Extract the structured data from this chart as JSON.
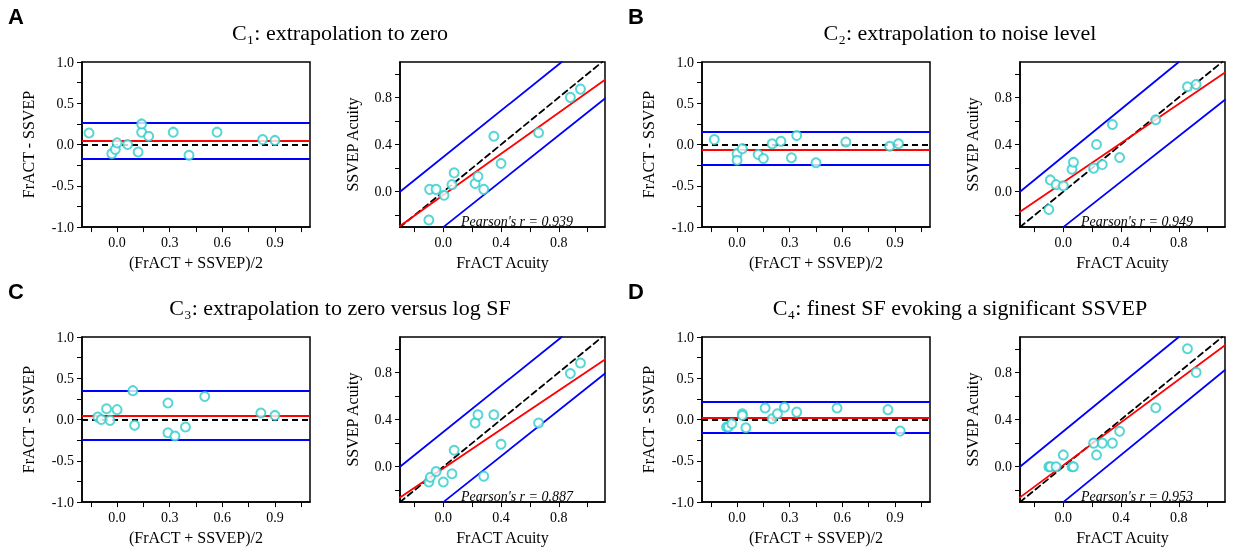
{
  "chart_data": [
    {
      "type": "scatter",
      "title": "C₁: extrapolation to zero",
      "annotations": [
        "A"
      ],
      "xlabel": "(FrACT + SSVEP)/2",
      "ylabel": "FrACT - SSVEP",
      "marker": "circle",
      "color": "#2ecccc",
      "x": [
        -0.16,
        -0.03,
        -0.01,
        0.0,
        0.06,
        0.12,
        0.14,
        0.14,
        0.18,
        0.32,
        0.41,
        0.57,
        0.83,
        0.9
      ],
      "values": [
        0.14,
        -0.11,
        -0.06,
        0.02,
        0.0,
        -0.09,
        0.15,
        0.25,
        0.1,
        0.15,
        -0.13,
        0.15,
        0.06,
        0.05
      ],
      "xlim": [
        -0.2,
        1.1
      ],
      "xticks": [
        {
          "value": -0.15,
          "label": null
        },
        {
          "value": 0,
          "label": "0.0"
        },
        {
          "value": 0.15,
          "label": null
        },
        0.3,
        {
          "value": 0.45,
          "label": null
        },
        0.6,
        {
          "value": 0.75,
          "label": null
        },
        0.9,
        {
          "value": 1.05,
          "label": null
        }
      ],
      "ylim": [
        -1,
        1
      ],
      "yticks": [
        {
          "value": -1,
          "label": "-1.0"
        },
        {
          "value": -0.75,
          "label": null
        },
        -0.5,
        {
          "value": -0.25,
          "label": null
        },
        {
          "value": 0,
          "label": "0.0"
        },
        {
          "value": 0.25,
          "label": null
        },
        0.5,
        {
          "value": 0.75,
          "label": null
        },
        {
          "value": 1,
          "label": "1.0"
        }
      ],
      "ref_lines": [
        {
          "axis": "y",
          "value": 0,
          "color": "#000000",
          "line_style": "dashed"
        },
        {
          "axis": "y",
          "value": 0.05,
          "color": "#ff0000"
        },
        {
          "axis": "y",
          "value": 0.27,
          "color": "#0000ff"
        },
        {
          "axis": "y",
          "value": -0.17,
          "color": "#0000ff"
        }
      ]
    },
    {
      "type": "scatter",
      "annotations": [
        "Pearson's r = 0.939"
      ],
      "xlabel": "FrACT Acuity",
      "ylabel": "SSVEP Acuity",
      "marker": "circle",
      "series": [
        {
          "color": "#2ecccc",
          "x": [
            -0.1,
            -0.095,
            -0.05,
            0.005,
            0.06,
            0.075,
            0.22,
            0.24,
            0.28,
            0.35,
            0.4,
            0.66,
            0.88,
            0.95
          ],
          "values": [
            -0.24,
            0.02,
            0.02,
            -0.03,
            0.06,
            0.16,
            0.07,
            0.13,
            0.02,
            0.47,
            0.24,
            0.5,
            0.8,
            0.87
          ]
        },
        {
          "type": "line",
          "marker": "none",
          "line_style": "dashed",
          "color": "#000000",
          "x": [
            -0.3,
            1.1
          ],
          "values": [
            -0.3,
            1.1
          ]
        },
        {
          "type": "line",
          "marker": "none",
          "color": "#ff0000",
          "x": [
            -0.3,
            1.12
          ],
          "values": [
            -0.29,
            0.95
          ]
        },
        {
          "type": "line",
          "marker": "none",
          "color": "#0000ff",
          "x": [
            -0.3,
            0.82
          ],
          "values": [
            0.0,
            1.1
          ]
        },
        {
          "type": "line",
          "marker": "none",
          "color": "#0000ff",
          "x": [
            0.0,
            1.12
          ],
          "values": [
            -0.3,
            0.79
          ]
        }
      ],
      "xlim": [
        -0.3,
        1.12
      ],
      "xticks": [
        {
          "value": -0.2,
          "label": null
        },
        {
          "value": 0,
          "label": "0.0"
        },
        {
          "value": 0.2,
          "label": null
        },
        0.4,
        {
          "value": 0.6,
          "label": null
        },
        0.8,
        {
          "value": 1,
          "label": null
        }
      ],
      "ylim": [
        -0.3,
        1.1
      ],
      "yticks": [
        {
          "value": -0.2,
          "label": null
        },
        {
          "value": 0,
          "label": "0.0"
        },
        {
          "value": 0.2,
          "label": null
        },
        0.4,
        {
          "value": 0.6,
          "label": null
        },
        0.8,
        {
          "value": 1,
          "label": null
        }
      ]
    },
    {
      "type": "scatter",
      "title": "C₂: extrapolation to noise level",
      "annotations": [
        "B"
      ],
      "xlabel": "(FrACT + SSVEP)/2",
      "ylabel": "FrACT - SSVEP",
      "marker": "circle",
      "color": "#2ecccc",
      "x": [
        -0.13,
        0.0,
        0.0,
        0.03,
        0.12,
        0.15,
        0.2,
        0.25,
        0.31,
        0.34,
        0.45,
        0.62,
        0.87,
        0.92
      ],
      "values": [
        0.06,
        -0.11,
        -0.19,
        -0.05,
        -0.12,
        -0.17,
        0.01,
        0.04,
        -0.16,
        0.11,
        -0.22,
        0.03,
        -0.02,
        0.01
      ],
      "xlim": [
        -0.2,
        1.1
      ],
      "xticks": [
        {
          "value": -0.15,
          "label": null
        },
        {
          "value": 0,
          "label": "0.0"
        },
        {
          "value": 0.15,
          "label": null
        },
        0.3,
        {
          "value": 0.45,
          "label": null
        },
        0.6,
        {
          "value": 0.75,
          "label": null
        },
        0.9,
        {
          "value": 1.05,
          "label": null
        }
      ],
      "ylim": [
        -1,
        1
      ],
      "yticks": [
        {
          "value": -1,
          "label": "-1.0"
        },
        {
          "value": -0.75,
          "label": null
        },
        -0.5,
        {
          "value": -0.25,
          "label": null
        },
        {
          "value": 0,
          "label": "0.0"
        },
        {
          "value": 0.25,
          "label": null
        },
        0.5,
        {
          "value": 0.75,
          "label": null
        },
        {
          "value": 1,
          "label": "1.0"
        }
      ],
      "ref_lines": [
        {
          "axis": "y",
          "value": 0,
          "color": "#000000",
          "line_style": "dashed"
        },
        {
          "axis": "y",
          "value": -0.06,
          "color": "#ff0000"
        },
        {
          "axis": "y",
          "value": 0.15,
          "color": "#0000ff"
        },
        {
          "axis": "y",
          "value": -0.25,
          "color": "#0000ff"
        }
      ]
    },
    {
      "type": "scatter",
      "annotations": [
        "Pearson's r = 0.949"
      ],
      "xlabel": "FrACT Acuity",
      "ylabel": "SSVEP Acuity",
      "marker": "circle",
      "series": [
        {
          "color": "#2ecccc",
          "x": [
            -0.1,
            -0.09,
            -0.05,
            0.0,
            0.06,
            0.07,
            0.21,
            0.23,
            0.27,
            0.34,
            0.39,
            0.64,
            0.86,
            0.92
          ],
          "values": [
            -0.15,
            0.1,
            0.06,
            0.05,
            0.19,
            0.25,
            0.2,
            0.4,
            0.23,
            0.57,
            0.29,
            0.61,
            0.89,
            0.91
          ]
        },
        {
          "type": "line",
          "marker": "none",
          "line_style": "dashed",
          "color": "#000000",
          "x": [
            -0.3,
            1.1
          ],
          "values": [
            -0.3,
            1.1
          ]
        },
        {
          "type": "line",
          "marker": "none",
          "color": "#ff0000",
          "x": [
            -0.3,
            1.12
          ],
          "values": [
            -0.17,
            1.01
          ]
        },
        {
          "type": "line",
          "marker": "none",
          "color": "#0000ff",
          "x": [
            -0.3,
            0.8
          ],
          "values": [
            0.0,
            1.1
          ]
        },
        {
          "type": "line",
          "marker": "none",
          "color": "#0000ff",
          "x": [
            0.0,
            1.12
          ],
          "values": [
            -0.3,
            0.78
          ]
        }
      ],
      "xlim": [
        -0.3,
        1.12
      ],
      "xticks": [
        {
          "value": -0.2,
          "label": null
        },
        {
          "value": 0,
          "label": "0.0"
        },
        {
          "value": 0.2,
          "label": null
        },
        0.4,
        {
          "value": 0.6,
          "label": null
        },
        0.8,
        {
          "value": 1,
          "label": null
        }
      ],
      "ylim": [
        -0.3,
        1.1
      ],
      "yticks": [
        {
          "value": -0.2,
          "label": null
        },
        {
          "value": 0,
          "label": "0.0"
        },
        {
          "value": 0.2,
          "label": null
        },
        0.4,
        {
          "value": 0.6,
          "label": null
        },
        0.8,
        {
          "value": 1,
          "label": null
        }
      ]
    },
    {
      "type": "scatter",
      "title": "C₃: extrapolation to zero versus log SF",
      "annotations": [
        "C"
      ],
      "xlabel": "(FrACT + SSVEP)/2",
      "ylabel": "FrACT - SSVEP",
      "marker": "circle",
      "color": "#2ecccc",
      "x": [
        -0.11,
        -0.09,
        -0.06,
        -0.04,
        0.0,
        0.09,
        0.1,
        0.29,
        0.29,
        0.33,
        0.39,
        0.5,
        0.82,
        0.9
      ],
      "values": [
        0.03,
        0.0,
        0.13,
        -0.01,
        0.12,
        0.35,
        -0.07,
        0.2,
        -0.16,
        -0.2,
        -0.09,
        0.28,
        0.08,
        0.05
      ],
      "xlim": [
        -0.2,
        1.1
      ],
      "xticks": [
        {
          "value": -0.15,
          "label": null
        },
        {
          "value": 0,
          "label": "0.0"
        },
        {
          "value": 0.15,
          "label": null
        },
        0.3,
        {
          "value": 0.45,
          "label": null
        },
        0.6,
        {
          "value": 0.75,
          "label": null
        },
        0.9,
        {
          "value": 1.05,
          "label": null
        }
      ],
      "ylim": [
        -1,
        1
      ],
      "yticks": [
        {
          "value": -1,
          "label": "-1.0"
        },
        {
          "value": -0.75,
          "label": null
        },
        -0.5,
        {
          "value": -0.25,
          "label": null
        },
        {
          "value": 0,
          "label": "0.0"
        },
        {
          "value": 0.25,
          "label": null
        },
        0.5,
        {
          "value": 0.75,
          "label": null
        },
        {
          "value": 1,
          "label": "1.0"
        }
      ],
      "ref_lines": [
        {
          "axis": "y",
          "value": 0,
          "color": "#000000",
          "line_style": "dashed"
        },
        {
          "axis": "y",
          "value": 0.05,
          "color": "#ff0000"
        },
        {
          "axis": "y",
          "value": 0.35,
          "color": "#0000ff"
        },
        {
          "axis": "y",
          "value": -0.25,
          "color": "#0000ff"
        }
      ]
    },
    {
      "type": "scatter",
      "annotations": [
        "Pearson's r = 0.887"
      ],
      "xlabel": "FrACT Acuity",
      "ylabel": "SSVEP Acuity",
      "marker": "circle",
      "series": [
        {
          "color": "#2ecccc",
          "x": [
            -0.1,
            -0.09,
            -0.05,
            0.0,
            0.06,
            0.075,
            0.22,
            0.24,
            0.28,
            0.35,
            0.4,
            0.66,
            0.88,
            0.95
          ],
          "values": [
            -0.13,
            -0.09,
            -0.04,
            -0.13,
            -0.06,
            0.14,
            0.37,
            0.44,
            -0.08,
            0.44,
            0.19,
            0.37,
            0.79,
            0.88
          ]
        },
        {
          "type": "line",
          "marker": "none",
          "line_style": "dashed",
          "color": "#000000",
          "x": [
            -0.3,
            1.1
          ],
          "values": [
            -0.3,
            1.1
          ]
        },
        {
          "type": "line",
          "marker": "none",
          "color": "#ff0000",
          "x": [
            -0.3,
            1.12
          ],
          "values": [
            -0.26,
            0.91
          ]
        },
        {
          "type": "line",
          "marker": "none",
          "color": "#0000ff",
          "x": [
            -0.3,
            0.82
          ],
          "values": [
            0.0,
            1.1
          ]
        },
        {
          "type": "line",
          "marker": "none",
          "color": "#0000ff",
          "x": [
            0.0,
            1.12
          ],
          "values": [
            -0.3,
            0.79
          ]
        }
      ],
      "xlim": [
        -0.3,
        1.12
      ],
      "xticks": [
        {
          "value": -0.2,
          "label": null
        },
        {
          "value": 0,
          "label": "0.0"
        },
        {
          "value": 0.2,
          "label": null
        },
        0.4,
        {
          "value": 0.6,
          "label": null
        },
        0.8,
        {
          "value": 1,
          "label": null
        }
      ],
      "ylim": [
        -0.3,
        1.1
      ],
      "yticks": [
        {
          "value": -0.2,
          "label": null
        },
        {
          "value": 0,
          "label": "0.0"
        },
        {
          "value": 0.2,
          "label": null
        },
        0.4,
        {
          "value": 0.6,
          "label": null
        },
        0.8,
        {
          "value": 1,
          "label": null
        }
      ]
    },
    {
      "type": "scatter",
      "title": "C₄: finest SF evoking a significant SSVEP",
      "annotations": [
        "D"
      ],
      "xlabel": "(FrACT + SSVEP)/2",
      "ylabel": "FrACT - SSVEP",
      "marker": "circle",
      "color": "#2ecccc",
      "x": [
        -0.06,
        -0.05,
        -0.03,
        0.03,
        0.03,
        0.05,
        0.16,
        0.2,
        0.23,
        0.27,
        0.34,
        0.57,
        0.86,
        0.93
      ],
      "values": [
        -0.09,
        -0.09,
        -0.05,
        0.07,
        0.05,
        -0.1,
        0.14,
        0.01,
        0.07,
        0.15,
        0.09,
        0.14,
        0.12,
        -0.14
      ],
      "xlim": [
        -0.2,
        1.1
      ],
      "xticks": [
        {
          "value": -0.15,
          "label": null
        },
        {
          "value": 0,
          "label": "0.0"
        },
        {
          "value": 0.15,
          "label": null
        },
        0.3,
        {
          "value": 0.45,
          "label": null
        },
        0.6,
        {
          "value": 0.75,
          "label": null
        },
        0.9,
        {
          "value": 1.05,
          "label": null
        }
      ],
      "ylim": [
        -1,
        1
      ],
      "yticks": [
        {
          "value": -1,
          "label": "-1.0"
        },
        {
          "value": -0.75,
          "label": null
        },
        -0.5,
        {
          "value": -0.25,
          "label": null
        },
        {
          "value": 0,
          "label": "0.0"
        },
        {
          "value": 0.25,
          "label": null
        },
        0.5,
        {
          "value": 0.75,
          "label": null
        },
        {
          "value": 1,
          "label": "1.0"
        }
      ],
      "ref_lines": [
        {
          "axis": "y",
          "value": 0,
          "color": "#000000",
          "line_style": "dashed"
        },
        {
          "axis": "y",
          "value": 0.02,
          "color": "#ff0000"
        },
        {
          "axis": "y",
          "value": 0.22,
          "color": "#0000ff"
        },
        {
          "axis": "y",
          "value": -0.16,
          "color": "#0000ff"
        }
      ]
    },
    {
      "type": "scatter",
      "annotations": [
        "Pearson's r = 0.953"
      ],
      "xlabel": "FrACT Acuity",
      "ylabel": "SSVEP Acuity",
      "marker": "circle",
      "series": [
        {
          "color": "#2ecccc",
          "x": [
            -0.1,
            -0.09,
            -0.05,
            0.0,
            0.06,
            0.07,
            0.21,
            0.23,
            0.27,
            0.34,
            0.39,
            0.64,
            0.86,
            0.92
          ],
          "values": [
            0.0,
            0.0,
            0.0,
            0.1,
            0.0,
            0.0,
            0.2,
            0.1,
            0.2,
            0.2,
            0.3,
            0.5,
            1.0,
            0.8
          ]
        },
        {
          "type": "line",
          "marker": "none",
          "line_style": "dashed",
          "color": "#000000",
          "x": [
            -0.3,
            1.1
          ],
          "values": [
            -0.3,
            1.1
          ]
        },
        {
          "type": "line",
          "marker": "none",
          "color": "#ff0000",
          "x": [
            -0.3,
            1.12
          ],
          "values": [
            -0.26,
            1.03
          ]
        },
        {
          "type": "line",
          "marker": "none",
          "color": "#0000ff",
          "x": [
            -0.3,
            0.8
          ],
          "values": [
            0.0,
            1.1
          ]
        },
        {
          "type": "line",
          "marker": "none",
          "color": "#0000ff",
          "x": [
            0.0,
            1.12
          ],
          "values": [
            -0.3,
            0.82
          ]
        }
      ],
      "xlim": [
        -0.3,
        1.12
      ],
      "xticks": [
        {
          "value": -0.2,
          "label": null
        },
        {
          "value": 0,
          "label": "0.0"
        },
        {
          "value": 0.2,
          "label": null
        },
        0.4,
        {
          "value": 0.6,
          "label": null
        },
        0.8,
        {
          "value": 1,
          "label": null
        }
      ],
      "ylim": [
        -0.3,
        1.1
      ],
      "yticks": [
        {
          "value": -0.2,
          "label": null
        },
        {
          "value": 0,
          "label": "0.0"
        },
        {
          "value": 0.2,
          "label": null
        },
        0.4,
        {
          "value": 0.6,
          "label": null
        },
        0.8,
        {
          "value": 1,
          "label": null
        }
      ]
    }
  ]
}
